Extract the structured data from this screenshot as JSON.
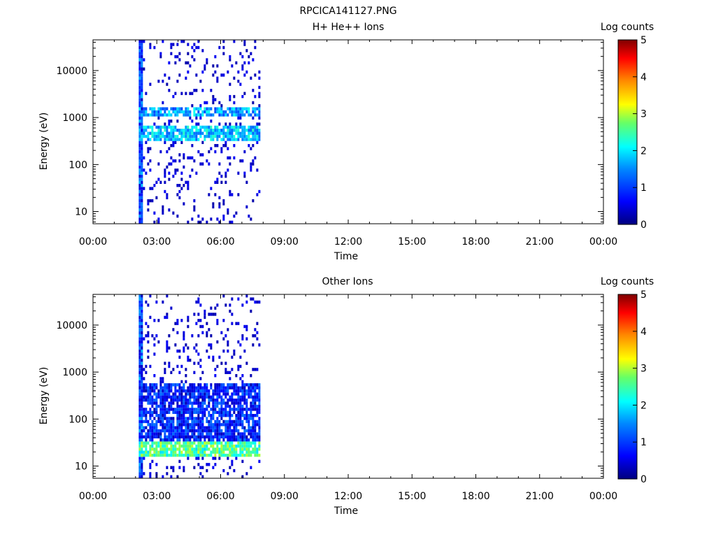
{
  "figure_title": "RPCICA141127.PNG",
  "colorbar_scale": [
    {
      "level": 0,
      "color": "#00007f"
    },
    {
      "level": 0.125,
      "color": "#0000ff"
    },
    {
      "level": 0.3,
      "color": "#0088ff"
    },
    {
      "level": 0.42,
      "color": "#00ffff"
    },
    {
      "level": 0.55,
      "color": "#66ff66"
    },
    {
      "level": 0.65,
      "color": "#ffff00"
    },
    {
      "level": 0.78,
      "color": "#ff8800"
    },
    {
      "level": 0.9,
      "color": "#ff0000"
    },
    {
      "level": 1,
      "color": "#7f0000"
    }
  ],
  "chart_data": [
    {
      "type": "heatmap",
      "title": "H+ He++ Ions",
      "xlabel": "Time",
      "ylabel": "Energy (eV)",
      "x_ticks": [
        "00:00",
        "03:00",
        "06:00",
        "09:00",
        "12:00",
        "15:00",
        "18:00",
        "21:00",
        "00:00"
      ],
      "x_range_hours": [
        0,
        24
      ],
      "y_scale": "log",
      "y_ticks": [
        10,
        100,
        1000,
        10000
      ],
      "y_tick_labels": [
        "10",
        "100",
        "1000",
        "10000"
      ],
      "y_range": [
        5.5,
        45000
      ],
      "colorbar": {
        "label": "Log counts",
        "range": [
          0,
          5
        ],
        "ticks": [
          "0",
          "1",
          "2",
          "3",
          "4",
          "5"
        ]
      },
      "data_time_range_hours": [
        2.15,
        7.85
      ],
      "bands": [
        {
          "energy_low_eV": 1000,
          "energy_high_eV": 1600,
          "log_counts": 1.6
        },
        {
          "energy_low_eV": 300,
          "energy_high_eV": 700,
          "log_counts": 1.8
        }
      ],
      "seed": 11
    },
    {
      "type": "heatmap",
      "title": "Other Ions",
      "xlabel": "Time",
      "ylabel": "Energy (eV)",
      "x_ticks": [
        "00:00",
        "03:00",
        "06:00",
        "09:00",
        "12:00",
        "15:00",
        "18:00",
        "21:00",
        "00:00"
      ],
      "x_range_hours": [
        0,
        24
      ],
      "y_scale": "log",
      "y_ticks": [
        10,
        100,
        1000,
        10000
      ],
      "y_tick_labels": [
        "10",
        "100",
        "1000",
        "10000"
      ],
      "y_range": [
        5.5,
        45000
      ],
      "colorbar": {
        "label": "Log counts",
        "range": [
          0,
          5
        ],
        "ticks": [
          "0",
          "1",
          "2",
          "3",
          "4",
          "5"
        ]
      },
      "data_time_range_hours": [
        2.15,
        7.85
      ],
      "bands": [
        {
          "energy_low_eV": 16,
          "energy_high_eV": 35,
          "log_counts": 2.5
        },
        {
          "energy_low_eV": 35,
          "energy_high_eV": 600,
          "log_counts": 0.8
        }
      ],
      "seed": 23
    }
  ]
}
